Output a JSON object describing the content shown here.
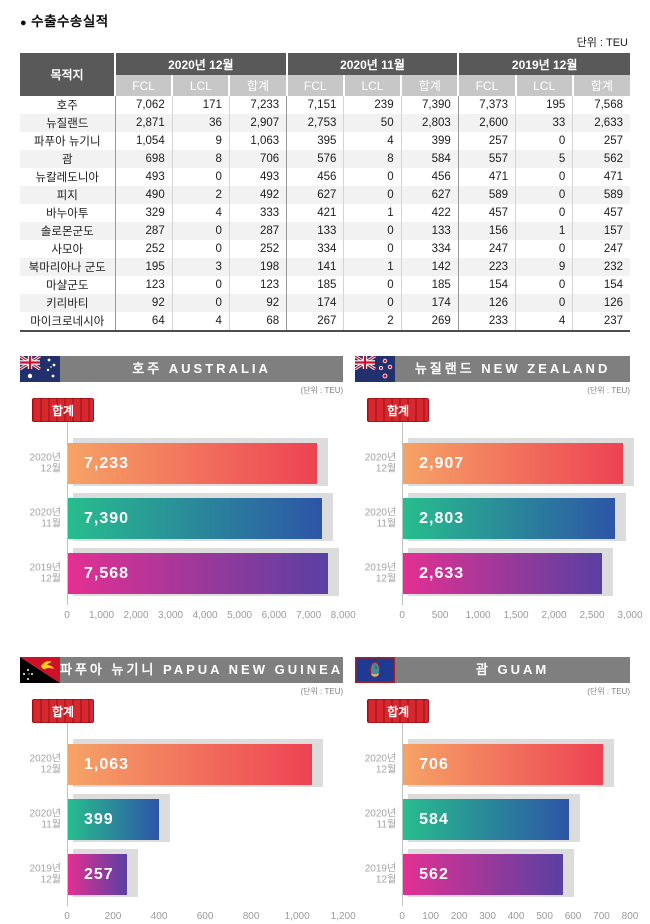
{
  "page": {
    "title": "수출수송실적",
    "title_bullet": "●",
    "unit_label": "단위 : TEU"
  },
  "colors": {
    "table_header_dark": "#595959",
    "table_header_light": "#c7c7c7",
    "table_row_alt": "#f2f2f2",
    "chart_title_bg": "#7f7f7f",
    "legend_red": "#d7282f",
    "bar_shadow": "#dcdcdc",
    "bar_gradients": [
      [
        "#f5a366",
        "#ee4253"
      ],
      [
        "#27bd8d",
        "#2d55a7"
      ],
      [
        "#e23092",
        "#5940a2"
      ]
    ]
  },
  "chart_data": [
    {
      "type": "table",
      "title": "수출수송실적",
      "unit": "단위 : TEU",
      "dest_header": "목적지",
      "groups": [
        "2020년 12월",
        "2020년 11월",
        "2019년 12월"
      ],
      "sub_headers": [
        "FCL",
        "LCL",
        "합계"
      ],
      "rows": [
        {
          "dest": "호주",
          "values": [
            7062,
            171,
            7233,
            7151,
            239,
            7390,
            7373,
            195,
            7568
          ]
        },
        {
          "dest": "뉴질랜드",
          "values": [
            2871,
            36,
            2907,
            2753,
            50,
            2803,
            2600,
            33,
            2633
          ]
        },
        {
          "dest": "파푸아 뉴기니",
          "values": [
            1054,
            9,
            1063,
            395,
            4,
            399,
            257,
            0,
            257
          ]
        },
        {
          "dest": "괌",
          "values": [
            698,
            8,
            706,
            576,
            8,
            584,
            557,
            5,
            562
          ]
        },
        {
          "dest": "뉴칼레도니아",
          "values": [
            493,
            0,
            493,
            456,
            0,
            456,
            471,
            0,
            471
          ]
        },
        {
          "dest": "피지",
          "values": [
            490,
            2,
            492,
            627,
            0,
            627,
            589,
            0,
            589
          ]
        },
        {
          "dest": "바누아투",
          "values": [
            329,
            4,
            333,
            421,
            1,
            422,
            457,
            0,
            457
          ]
        },
        {
          "dest": "솔로몬군도",
          "values": [
            287,
            0,
            287,
            133,
            0,
            133,
            156,
            1,
            157
          ]
        },
        {
          "dest": "사모아",
          "values": [
            252,
            0,
            252,
            334,
            0,
            334,
            247,
            0,
            247
          ]
        },
        {
          "dest": "북마리아나 군도",
          "values": [
            195,
            3,
            198,
            141,
            1,
            142,
            223,
            9,
            232
          ]
        },
        {
          "dest": "마샬군도",
          "values": [
            123,
            0,
            123,
            185,
            0,
            185,
            154,
            0,
            154
          ]
        },
        {
          "dest": "키리바티",
          "values": [
            92,
            0,
            92,
            174,
            0,
            174,
            126,
            0,
            126
          ]
        },
        {
          "dest": "마이크로네시아",
          "values": [
            64,
            4,
            68,
            267,
            2,
            269,
            233,
            4,
            237
          ]
        }
      ]
    },
    {
      "type": "bar",
      "flag": "australia",
      "title": "호주 AUSTRALIA",
      "unit": "(단위 : TEU)",
      "legend": "합계",
      "categories": [
        "2020년 12월",
        "2020년 11월",
        "2019년 12월"
      ],
      "values": [
        7233,
        7390,
        7568
      ],
      "xlim": [
        0,
        8000
      ],
      "ticks": [
        0,
        1000,
        2000,
        3000,
        4000,
        5000,
        6000,
        7000,
        8000
      ]
    },
    {
      "type": "bar",
      "flag": "new-zealand",
      "title": "뉴질랜드 NEW ZEALAND",
      "unit": "(단위 : TEU)",
      "legend": "합계",
      "categories": [
        "2020년 12월",
        "2020년 11월",
        "2019년 12월"
      ],
      "values": [
        2907,
        2803,
        2633
      ],
      "xlim": [
        0,
        3000
      ],
      "ticks": [
        0,
        500,
        1000,
        1500,
        2000,
        2500,
        3000
      ]
    },
    {
      "type": "bar",
      "flag": "papua-new-guinea",
      "title": "파푸아 뉴기니 PAPUA NEW GUINEA",
      "unit": "(단위 : TEU)",
      "legend": "합계",
      "categories": [
        "2020년 12월",
        "2020년 11월",
        "2019년 12월"
      ],
      "values": [
        1063,
        399,
        257
      ],
      "xlim": [
        0,
        1200
      ],
      "ticks": [
        0,
        200,
        400,
        600,
        800,
        1000,
        1200
      ]
    },
    {
      "type": "bar",
      "flag": "guam",
      "title": "괌 GUAM",
      "unit": "(단위 : TEU)",
      "legend": "합계",
      "categories": [
        "2020년 12월",
        "2020년 11월",
        "2019년 12월"
      ],
      "values": [
        706,
        584,
        562
      ],
      "xlim": [
        0,
        800
      ],
      "ticks": [
        0,
        100,
        200,
        300,
        400,
        500,
        600,
        700,
        800
      ]
    }
  ]
}
